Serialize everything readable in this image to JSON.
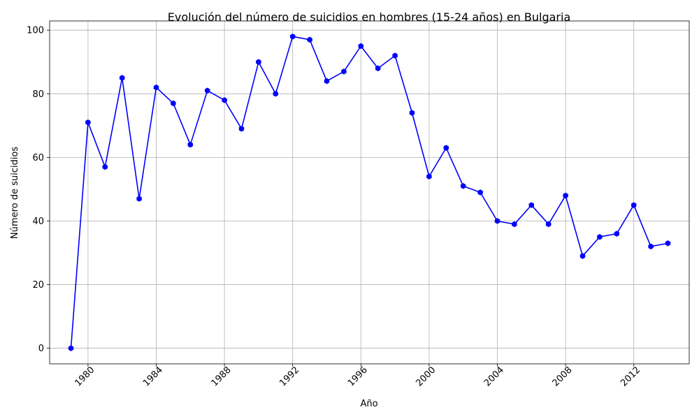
{
  "chart_data": {
    "type": "line",
    "title": "Evolución del número de suicidios en hombres (15-24 años) en Bulgaria",
    "xlabel": "Año",
    "ylabel": "Número de suicidios",
    "xlim": [
      1977.75,
      2015.25
    ],
    "ylim": [
      -4.9,
      102.9
    ],
    "x_ticks": [
      1980,
      1984,
      1988,
      1992,
      1996,
      2000,
      2004,
      2008,
      2012
    ],
    "x_tick_labels": [
      "1980",
      "1984",
      "1988",
      "1992",
      "1996",
      "2000",
      "2004",
      "2008",
      "2012"
    ],
    "y_ticks": [
      0,
      20,
      40,
      60,
      80,
      100
    ],
    "y_tick_labels": [
      "0",
      "20",
      "40",
      "60",
      "80",
      "100"
    ],
    "grid": true,
    "line_color": "#0000ff",
    "marker": "hexagon",
    "x": [
      1979,
      1980,
      1981,
      1982,
      1983,
      1984,
      1985,
      1986,
      1987,
      1988,
      1989,
      1990,
      1991,
      1992,
      1993,
      1994,
      1995,
      1996,
      1997,
      1998,
      1999,
      2000,
      2001,
      2002,
      2003,
      2004,
      2005,
      2006,
      2007,
      2008,
      2009,
      2010,
      2011,
      2012,
      2013,
      2014
    ],
    "y": [
      0,
      71,
      57,
      85,
      47,
      82,
      77,
      64,
      81,
      78,
      69,
      90,
      80,
      98,
      97,
      84,
      87,
      95,
      88,
      92,
      74,
      54,
      63,
      51,
      49,
      40,
      39,
      45,
      39,
      48,
      29,
      35,
      36,
      45,
      32,
      33
    ]
  }
}
